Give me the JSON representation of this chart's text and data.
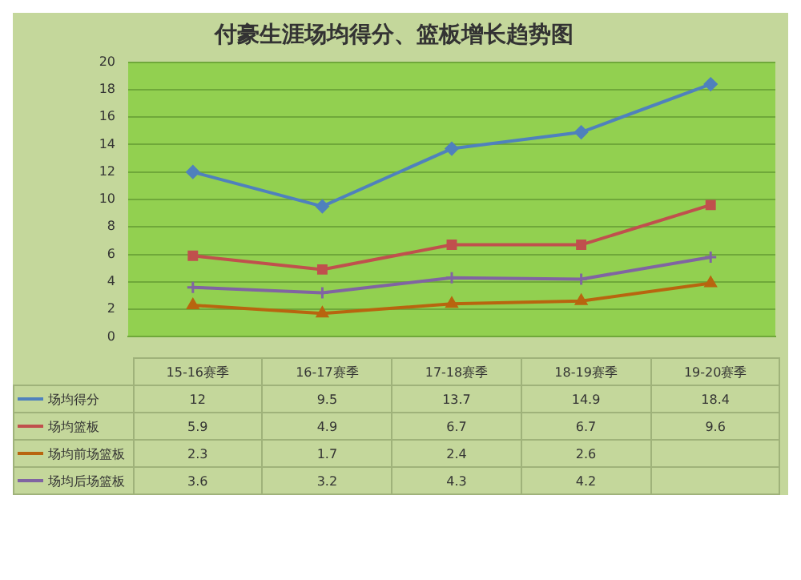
{
  "chart_data": {
    "type": "line",
    "title": "付豪生涯场均得分、篮板增长趋势图",
    "categories": [
      "15-16赛季",
      "16-17赛季",
      "17-18赛季",
      "18-19赛季",
      "19-20赛季"
    ],
    "series": [
      {
        "name": "场均得分",
        "color": "#4f81bd",
        "marker": "diamond",
        "values": [
          12,
          9.5,
          13.7,
          14.9,
          18.4
        ],
        "value_labels": [
          "12",
          "9.5",
          "13.7",
          "14.9",
          "18.4"
        ]
      },
      {
        "name": "场均篮板",
        "color": "#c0504d",
        "marker": "square",
        "values": [
          5.9,
          4.9,
          6.7,
          6.7,
          9.6
        ],
        "value_labels": [
          "5.9",
          "4.9",
          "6.7",
          "6.7",
          "9.6"
        ]
      },
      {
        "name": "场均前场篮板",
        "color": "#b8650f",
        "marker": "triangle",
        "values": [
          2.3,
          1.7,
          2.4,
          2.6,
          3.9
        ],
        "value_labels": [
          "2.3",
          "1.7",
          "2.4",
          "2.6",
          null
        ]
      },
      {
        "name": "场均后场篮板",
        "color": "#8064a2",
        "marker": "cross",
        "values": [
          3.6,
          3.2,
          4.3,
          4.2,
          5.8
        ],
        "value_labels": [
          "3.6",
          "3.2",
          "4.3",
          "4.2",
          null
        ]
      }
    ],
    "ylim": [
      0,
      20
    ],
    "yticks": [
      0,
      2,
      4,
      6,
      8,
      10,
      12,
      14,
      16,
      18,
      20
    ],
    "grid": "y",
    "legend": "bottom"
  }
}
